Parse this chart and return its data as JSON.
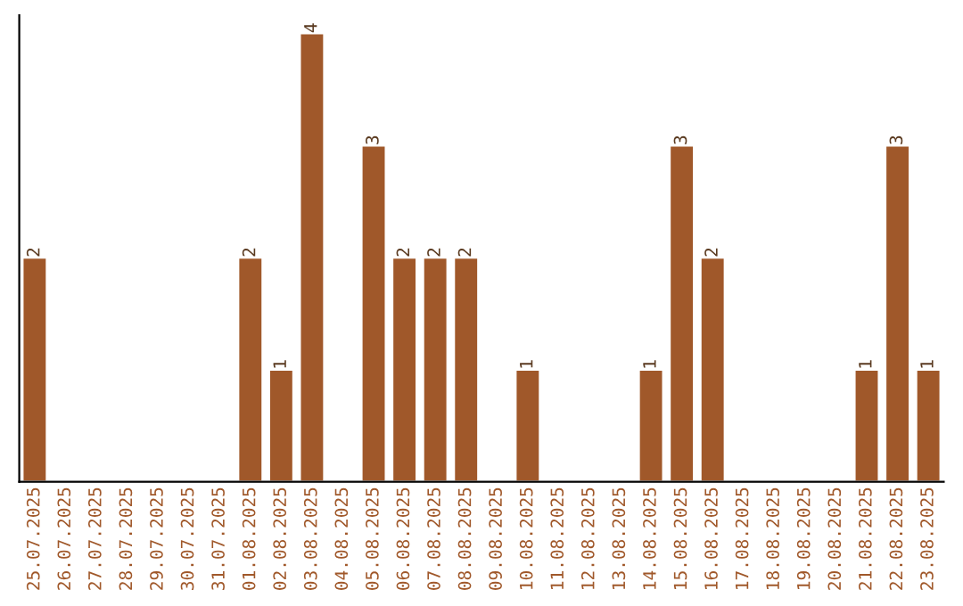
{
  "chart_data": {
    "type": "bar",
    "categories": [
      "25.07.2025",
      "26.07.2025",
      "27.07.2025",
      "28.07.2025",
      "29.07.2025",
      "30.07.2025",
      "31.07.2025",
      "01.08.2025",
      "02.08.2025",
      "03.08.2025",
      "04.08.2025",
      "05.08.2025",
      "06.08.2025",
      "07.08.2025",
      "08.08.2025",
      "09.08.2025",
      "10.08.2025",
      "11.08.2025",
      "12.08.2025",
      "13.08.2025",
      "14.08.2025",
      "15.08.2025",
      "16.08.2025",
      "17.08.2025",
      "18.08.2025",
      "19.08.2025",
      "20.08.2025",
      "21.08.2025",
      "22.08.2025",
      "23.08.2025"
    ],
    "values": [
      2,
      null,
      null,
      null,
      null,
      null,
      null,
      2,
      1,
      4,
      null,
      3,
      2,
      2,
      2,
      null,
      1,
      null,
      null,
      null,
      1,
      3,
      2,
      null,
      null,
      null,
      null,
      1,
      3,
      1
    ],
    "value_labels": [
      "2",
      null,
      null,
      null,
      null,
      null,
      null,
      "2",
      "1",
      "4",
      null,
      "3",
      "2",
      "2",
      "2",
      null,
      "1",
      null,
      null,
      null,
      "1",
      "3",
      "2",
      null,
      null,
      null,
      null,
      "1",
      "3",
      "1"
    ],
    "color": "#a0582a",
    "tick_labels": "x",
    "grid": false,
    "legend": false
  }
}
